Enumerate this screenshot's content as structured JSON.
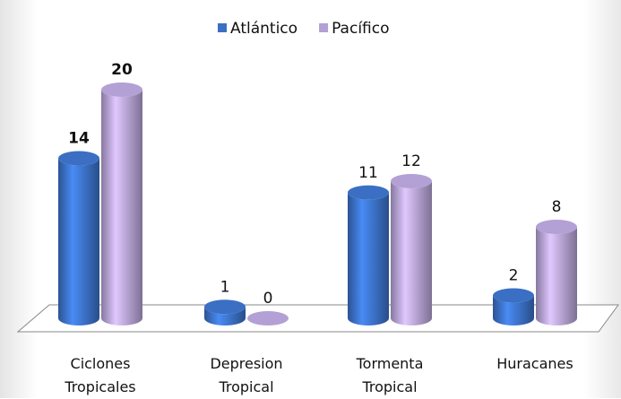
{
  "chart_data": {
    "type": "bar",
    "categories": [
      "Ciclones Tropicales",
      "Depresion Tropical",
      "Tormenta Tropical",
      "Huracanes"
    ],
    "series": [
      {
        "name": "Atlántico",
        "color": "#3a6fc4",
        "values": [
          14,
          1,
          11,
          2
        ]
      },
      {
        "name": "Pacífico",
        "color": "#b3a0d4",
        "values": [
          20,
          0,
          12,
          8
        ]
      }
    ],
    "legend": "top"
  }
}
